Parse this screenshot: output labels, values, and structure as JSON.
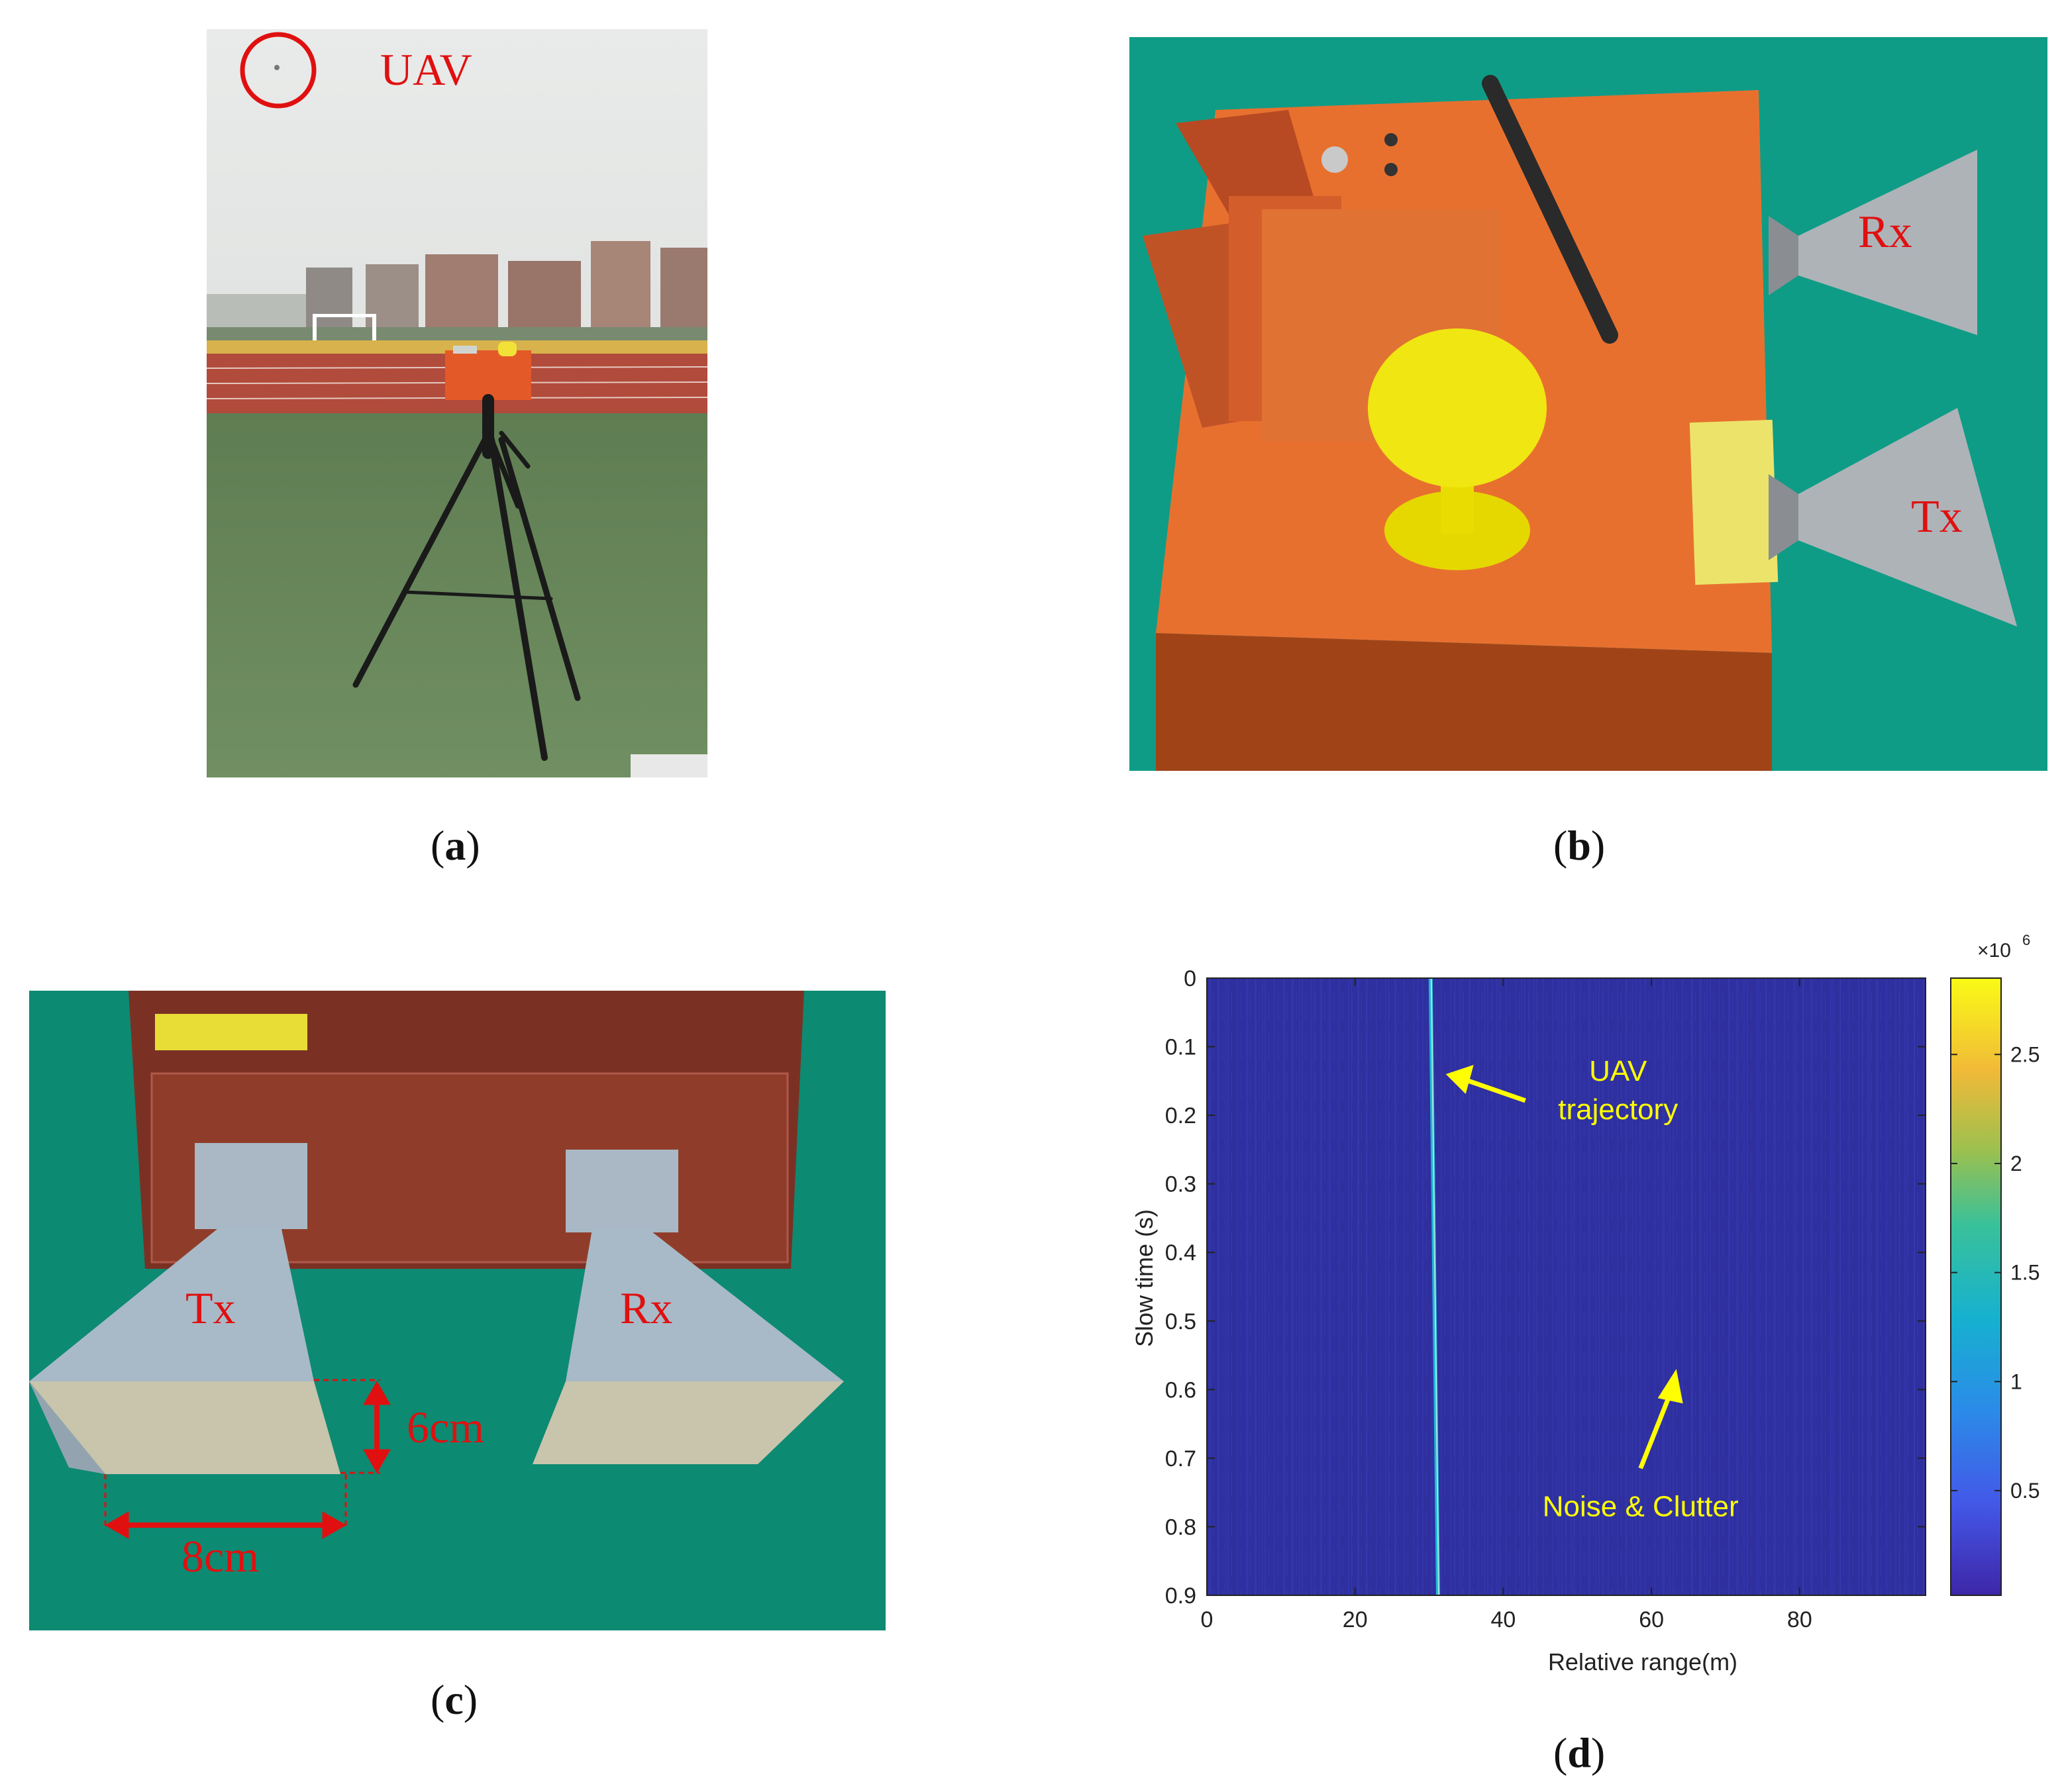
{
  "panels": {
    "a": {
      "caption": "a",
      "label_uav": "UAV"
    },
    "b": {
      "caption": "b",
      "label_rx": "Rx",
      "label_tx": "Tx"
    },
    "c": {
      "caption": "c",
      "label_tx": "Tx",
      "label_rx": "Rx",
      "dim_height": "6cm",
      "dim_width": "8cm"
    },
    "d": {
      "caption": "d"
    }
  },
  "colors": {
    "annotation_red": "#e01010",
    "annotation_yellow": "#ffff00"
  },
  "chart_data": {
    "type": "heatmap",
    "xlabel": "Relative range(m)",
    "ylabel": "Slow time (s)",
    "xlim": [
      0,
      97
    ],
    "ylim": [
      0,
      0.9
    ],
    "y_reversed": true,
    "xticks": [
      "0",
      "20",
      "40",
      "60",
      "80"
    ],
    "xtick_values": [
      0,
      20,
      40,
      60,
      80
    ],
    "yticks": [
      "0",
      "0.1",
      "0.2",
      "0.3",
      "0.4",
      "0.5",
      "0.6",
      "0.7",
      "0.8",
      "0.9"
    ],
    "ytick_values": [
      0,
      0.1,
      0.2,
      0.3,
      0.4,
      0.5,
      0.6,
      0.7,
      0.8,
      0.9
    ],
    "colorbar": {
      "exponent": "×10",
      "exponent_power": "6",
      "ticks": [
        "0.5",
        "1",
        "1.5",
        "2",
        "2.5"
      ],
      "tick_values": [
        0.5,
        1,
        1.5,
        2,
        2.5
      ],
      "range": [
        0.02,
        2.85
      ]
    },
    "trajectory": {
      "start": [
        30.2,
        0
      ],
      "end": [
        31.2,
        0.9
      ]
    },
    "annotations": {
      "uav": {
        "line1": "UAV",
        "line2": "trajectory",
        "points_to": [
          31.0,
          0.14
        ]
      },
      "noise": {
        "text": "Noise & Clutter",
        "points_to": [
          63,
          0.57
        ]
      }
    }
  }
}
